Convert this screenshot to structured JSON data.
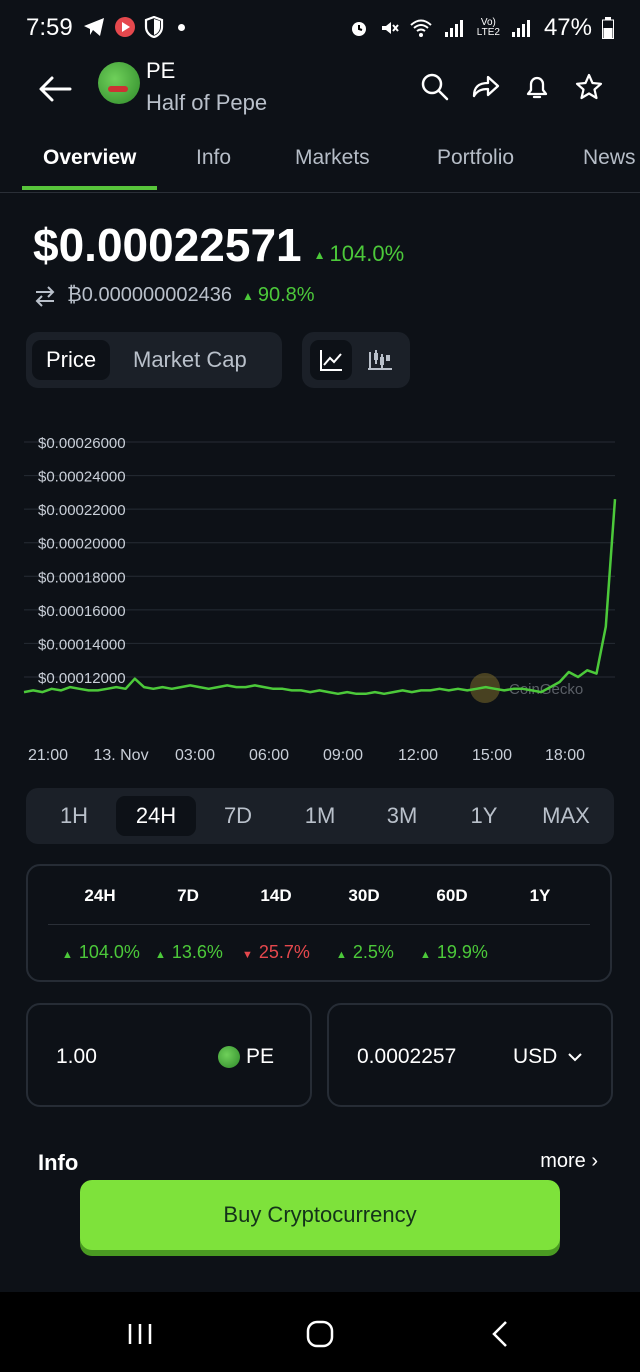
{
  "status_bar": {
    "time": "7:59",
    "battery": "47%"
  },
  "header": {
    "ticker": "PE",
    "name": "Half of Pepe",
    "icons": [
      "back-arrow-icon",
      "search-icon",
      "share-icon",
      "bell-icon",
      "star-icon"
    ]
  },
  "tabs": [
    {
      "label": "Overview",
      "active": true
    },
    {
      "label": "Info"
    },
    {
      "label": "Markets"
    },
    {
      "label": "Portfolio"
    },
    {
      "label": "News"
    }
  ],
  "price": {
    "usd": "$0.00022571",
    "usd_change": "104.0%",
    "btc": "₿0.000000002436",
    "btc_change": "90.8%"
  },
  "chart_toggle": {
    "price_label": "Price",
    "market_cap_label": "Market Cap"
  },
  "chart_data": {
    "type": "line",
    "y_tick_labels": [
      "$0.00026000",
      "$0.00024000",
      "$0.00022000",
      "$0.00020000",
      "$0.00018000",
      "$0.00016000",
      "$0.00014000",
      "$0.00012000"
    ],
    "x_tick_labels": [
      "21:00",
      "13. Nov",
      "03:00",
      "06:00",
      "09:00",
      "12:00",
      "15:00",
      "18:00"
    ],
    "ylim": [
      0.0001,
      0.00026
    ],
    "watermark": "CoinGecko",
    "series": [
      {
        "color": "#4cc93a",
        "values": [
          0.000111,
          0.000112,
          0.000111,
          0.000113,
          0.000112,
          0.000114,
          0.000113,
          0.000112,
          0.000112,
          0.000113,
          0.000114,
          0.000113,
          0.000119,
          0.000114,
          0.000113,
          0.000114,
          0.000113,
          0.000114,
          0.000115,
          0.000114,
          0.000113,
          0.000114,
          0.000115,
          0.000114,
          0.000114,
          0.000115,
          0.000114,
          0.000113,
          0.000113,
          0.000112,
          0.000112,
          0.000111,
          0.000112,
          0.000111,
          0.00011,
          0.000111,
          0.00011,
          0.00011,
          0.000111,
          0.00011,
          0.000111,
          0.000112,
          0.000111,
          0.000112,
          0.000112,
          0.000113,
          0.000112,
          0.000113,
          0.000112,
          0.000113,
          0.000114,
          0.000113,
          0.000112,
          0.000113,
          0.000113,
          0.000112,
          0.000111,
          0.000114,
          0.000117,
          0.000123,
          0.00012,
          0.000124,
          0.000122,
          0.00015,
          0.000226
        ]
      }
    ]
  },
  "ranges": [
    {
      "label": "1H"
    },
    {
      "label": "24H",
      "selected": true
    },
    {
      "label": "7D"
    },
    {
      "label": "1M"
    },
    {
      "label": "3M"
    },
    {
      "label": "1Y"
    },
    {
      "label": "MAX"
    }
  ],
  "performance": {
    "headers": [
      "24H",
      "7D",
      "14D",
      "30D",
      "60D",
      "1Y"
    ],
    "values": [
      {
        "text": "104.0%",
        "dir": "up"
      },
      {
        "text": "13.6%",
        "dir": "up"
      },
      {
        "text": "25.7%",
        "dir": "down"
      },
      {
        "text": "2.5%",
        "dir": "up"
      },
      {
        "text": "19.9%",
        "dir": "up"
      }
    ]
  },
  "converter": {
    "amount": "1.00",
    "coin": "PE",
    "fiat_value": "0.0002257",
    "fiat": "USD"
  },
  "info": {
    "title": "Info",
    "more": "more"
  },
  "buy_button": "Buy Cryptocurrency",
  "colors": {
    "background": "#0d1117",
    "accent": "#7ee23b",
    "up": "#4cc93a",
    "down": "#e5484d"
  }
}
